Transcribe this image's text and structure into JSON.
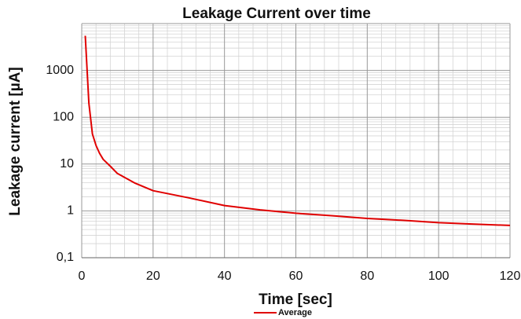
{
  "chart_data": {
    "type": "line",
    "title": "Leakage Current over time",
    "xlabel": "Time [sec]",
    "ylabel": "Leakage current [µA]",
    "x": [
      1,
      2,
      3,
      4,
      5,
      6,
      8,
      10,
      15,
      20,
      30,
      40,
      50,
      60,
      70,
      80,
      90,
      100,
      110,
      120
    ],
    "series": [
      {
        "name": "Average",
        "color": "#e00000",
        "values": [
          5500,
          200,
          44,
          25,
          17,
          12.6,
          9,
          6.3,
          3.9,
          2.7,
          1.9,
          1.3,
          1.05,
          0.89,
          0.79,
          0.69,
          0.63,
          0.56,
          0.52,
          0.49
        ]
      }
    ],
    "xlim": [
      0,
      120
    ],
    "xticks": [
      0,
      20,
      40,
      60,
      80,
      100,
      120
    ],
    "ylim": [
      0.1,
      10000
    ],
    "yticks": [
      {
        "value": 0.1,
        "label": "0,1"
      },
      1,
      10,
      100,
      1000
    ],
    "yscale": "log",
    "grid": true,
    "minor_grid": true,
    "legend": "bottom"
  }
}
